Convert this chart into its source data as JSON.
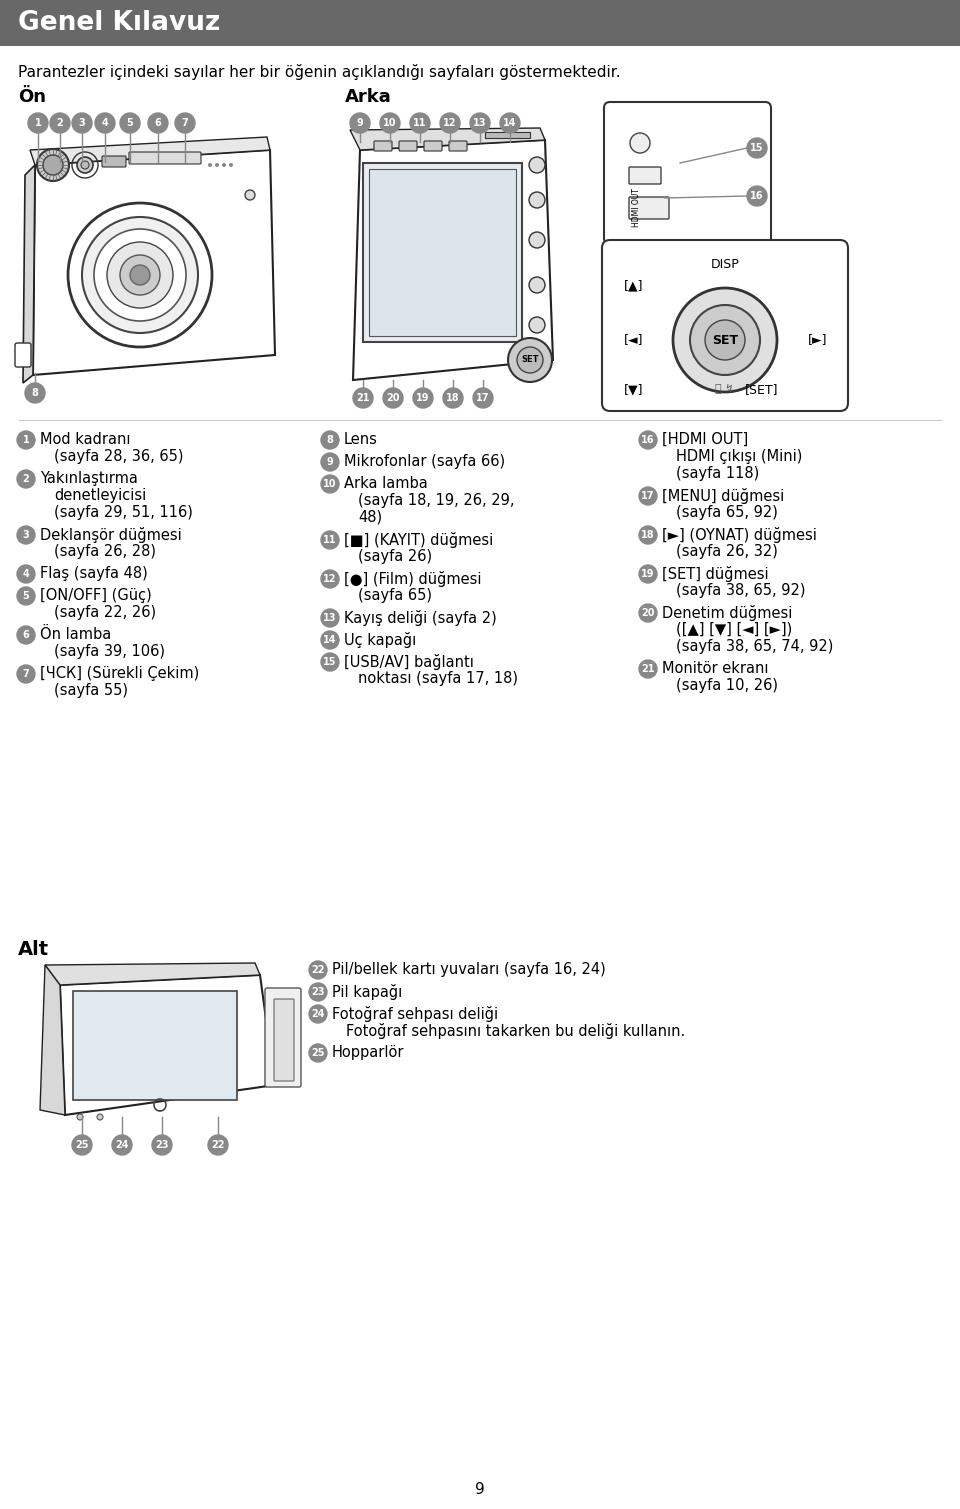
{
  "title": "Genel Kılavuz",
  "subtitle": "Parantezler içindeki sayılar her bir öğenin açıklandığı sayfaları göstermektedir.",
  "header_bg": "#686868",
  "header_text_color": "#ffffff",
  "body_bg": "#ffffff",
  "section_on": "Ön",
  "section_arka": "Arka",
  "section_alt": "Alt",
  "page_number": "9",
  "circle_bg": "#888888",
  "circle_text": "#ffffff",
  "col1_items": [
    {
      "num": "1",
      "lines": [
        "Mod kadranı",
        "(sayfa 28, 36, 65)"
      ]
    },
    {
      "num": "2",
      "lines": [
        "Yakınlaştırma",
        "denetleyicisi",
        "(sayfa 29, 51, 116)"
      ]
    },
    {
      "num": "3",
      "lines": [
        "Deklanşör düğmesi",
        "(sayfa 26, 28)"
      ]
    },
    {
      "num": "4",
      "lines": [
        "Flaş (sayfa 48)"
      ]
    },
    {
      "num": "5",
      "lines": [
        "[ON/OFF] (Güç)",
        "(sayfa 22, 26)"
      ]
    },
    {
      "num": "6",
      "lines": [
        "Ön lamba",
        "(sayfa 39, 106)"
      ]
    },
    {
      "num": "7",
      "lines": [
        "[ЧСК] (Sürekli Çekim)",
        "(sayfa 55)"
      ]
    }
  ],
  "col2_items": [
    {
      "num": "8",
      "lines": [
        "Lens"
      ]
    },
    {
      "num": "9",
      "lines": [
        "Mikrofonlar (sayfa 66)"
      ]
    },
    {
      "num": "10",
      "lines": [
        "Arka lamba",
        "(sayfa 18, 19, 26, 29,",
        "48)"
      ]
    },
    {
      "num": "11",
      "lines": [
        "[■] (KAYIT) düğmesi",
        "(sayfa 26)"
      ]
    },
    {
      "num": "12",
      "lines": [
        "[●] (Film) düğmesi",
        "(sayfa 65)"
      ]
    },
    {
      "num": "13",
      "lines": [
        "Kayış deliği (sayfa 2)"
      ]
    },
    {
      "num": "14",
      "lines": [
        "Uç kapağı"
      ]
    },
    {
      "num": "15",
      "lines": [
        "[USB/AV] bağlantı",
        "noktası (sayfa 17, 18)"
      ]
    }
  ],
  "col3_items": [
    {
      "num": "16",
      "lines": [
        "[HDMI OUT]",
        "HDMI çıkışı (Mini)",
        "(sayfa 118)"
      ]
    },
    {
      "num": "17",
      "lines": [
        "[MENU] düğmesi",
        "(sayfa 65, 92)"
      ]
    },
    {
      "num": "18",
      "lines": [
        "[►] (OYNAT) düğmesi",
        "(sayfa 26, 32)"
      ]
    },
    {
      "num": "19",
      "lines": [
        "[SET] düğmesi",
        "(sayfa 38, 65, 92)"
      ]
    },
    {
      "num": "20",
      "lines": [
        "Denetim düğmesi",
        "([▲] [▼] [◄] [►])",
        "(sayfa 38, 65, 74, 92)"
      ]
    },
    {
      "num": "21",
      "lines": [
        "Monitör ekranı",
        "(sayfa 10, 26)"
      ]
    }
  ],
  "alt_items": [
    {
      "num": "22",
      "lines": [
        "Pil/bellek kartı yuvaları (sayfa 16, 24)"
      ]
    },
    {
      "num": "23",
      "lines": [
        "Pil kapağı"
      ]
    },
    {
      "num": "24",
      "lines": [
        "Fotoğraf sehpası deliği",
        "Fotoğraf sehpasını takarken bu deliği kullanın."
      ]
    },
    {
      "num": "25",
      "lines": [
        "Hopparlör"
      ]
    }
  ]
}
